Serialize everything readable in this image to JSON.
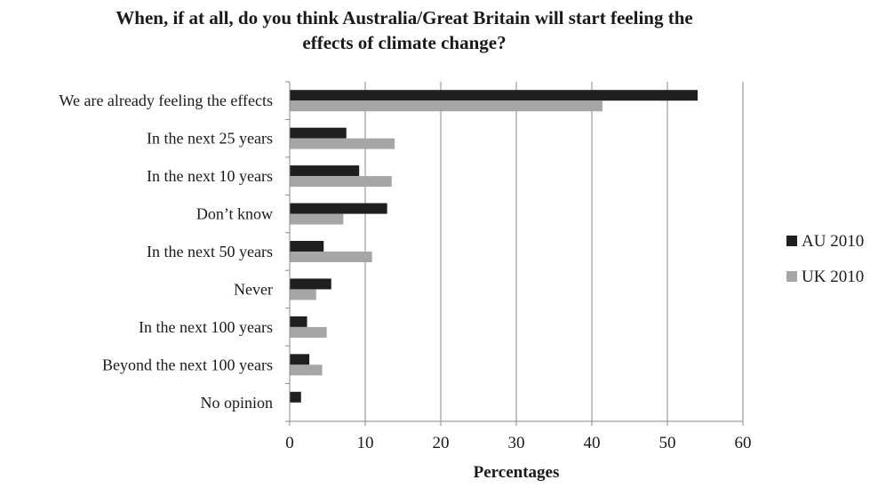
{
  "chart_data": {
    "type": "bar",
    "orientation": "horizontal",
    "title_lines": [
      "When, if at all, do you think Australia/Great Britain will start feeling the",
      "effects of climate change?"
    ],
    "xlabel": "Percentages",
    "ylabel": "",
    "xlim": [
      0,
      60
    ],
    "xticks": [
      0,
      10,
      20,
      30,
      40,
      50,
      60
    ],
    "grid": "vertical",
    "legend_position": "right",
    "categories": [
      "We are already feeling the effects",
      "In the next 25 years",
      "In the next 10 years",
      "Don’t know",
      "In the next 50 years",
      "Never",
      "In the next 100 years",
      "Beyond the next 100 years",
      "No opinion"
    ],
    "series": [
      {
        "name": "AU 2010",
        "color": "#1f1f1f",
        "values": [
          54,
          7.5,
          9.2,
          12.9,
          4.5,
          5.5,
          2.3,
          2.6,
          1.5
        ]
      },
      {
        "name": "UK 2010",
        "color": "#a6a6a6",
        "values": [
          41.4,
          13.9,
          13.5,
          7.1,
          10.9,
          3.5,
          4.9,
          4.3,
          0
        ]
      }
    ]
  }
}
